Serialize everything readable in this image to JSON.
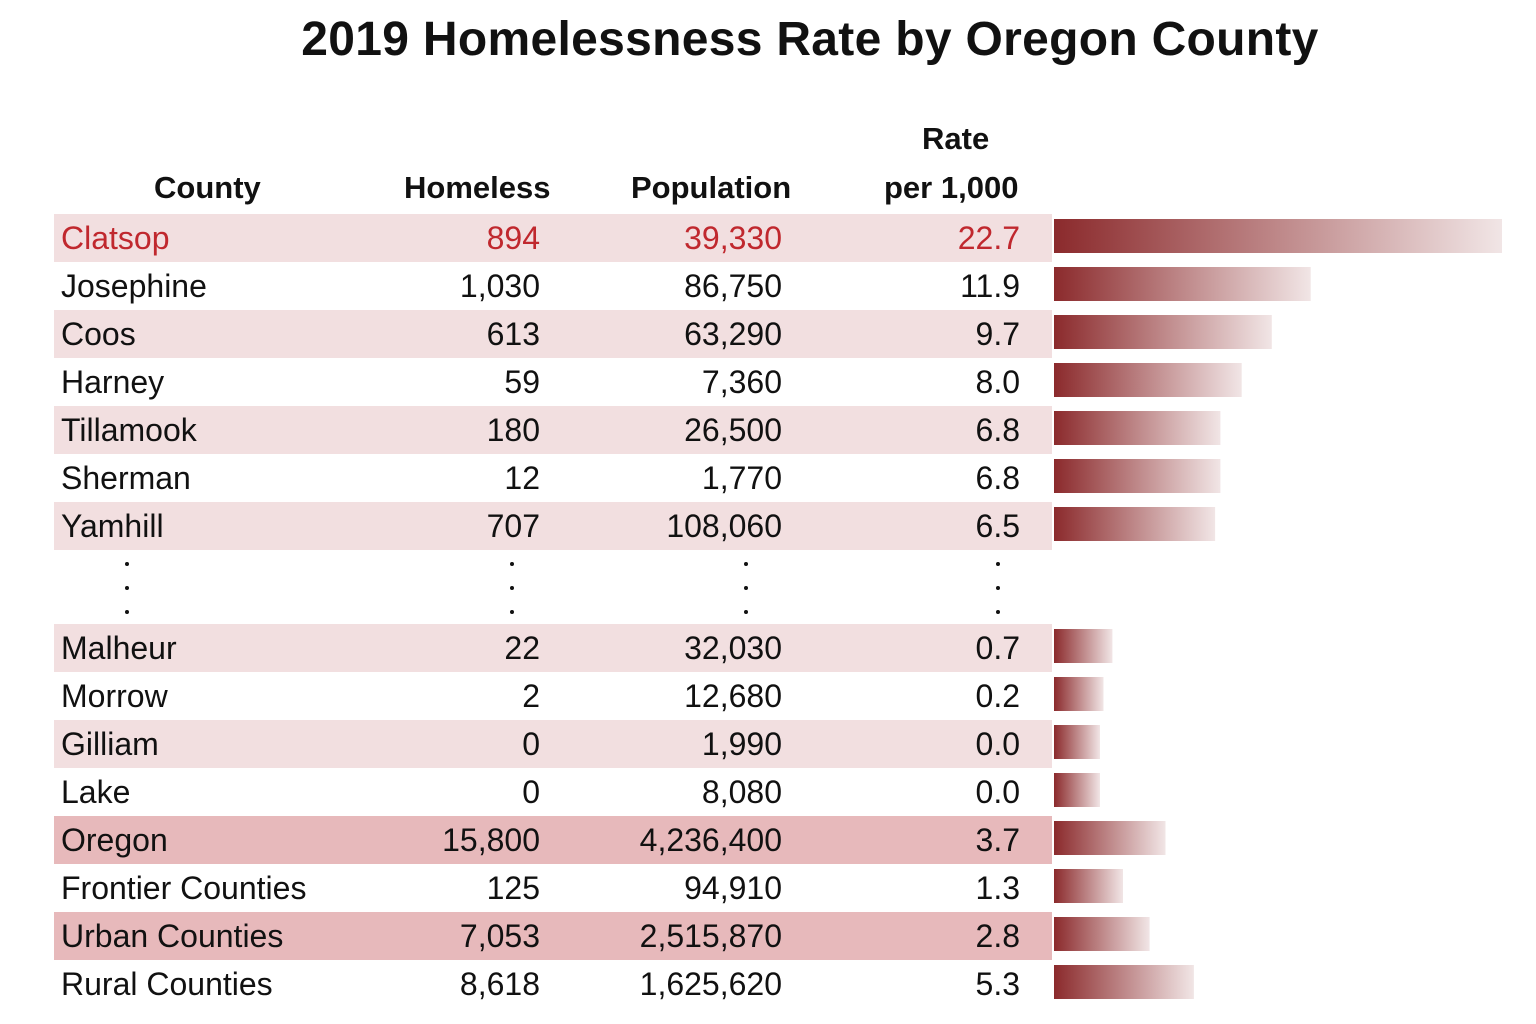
{
  "title": "2019 Homelessness Rate by Oregon County",
  "headers": {
    "county": "County",
    "homeless": "Homeless",
    "population": "Population",
    "rate_line1": "Rate",
    "rate_line2": "per 1,000"
  },
  "ellipsis": ":",
  "rows": [
    {
      "county": "Clatsop",
      "homeless": "894",
      "population": "39,330",
      "rate": "22.7"
    },
    {
      "county": "Josephine",
      "homeless": "1,030",
      "population": "86,750",
      "rate": "11.9"
    },
    {
      "county": "Coos",
      "homeless": "613",
      "population": "63,290",
      "rate": "9.7"
    },
    {
      "county": "Harney",
      "homeless": "59",
      "population": "7,360",
      "rate": "8.0"
    },
    {
      "county": "Tillamook",
      "homeless": "180",
      "population": "26,500",
      "rate": "6.8"
    },
    {
      "county": "Sherman",
      "homeless": "12",
      "population": "1,770",
      "rate": "6.8"
    },
    {
      "county": "Yamhill",
      "homeless": "707",
      "population": "108,060",
      "rate": "6.5"
    },
    {
      "county": "Malheur",
      "homeless": "22",
      "population": "32,030",
      "rate": "0.7"
    },
    {
      "county": "Morrow",
      "homeless": "2",
      "population": "12,680",
      "rate": "0.2"
    },
    {
      "county": "Gilliam",
      "homeless": "0",
      "population": "1,990",
      "rate": "0.0"
    },
    {
      "county": "Lake",
      "homeless": "0",
      "population": "8,080",
      "rate": "0.0"
    },
    {
      "county": "Oregon",
      "homeless": "15,800",
      "population": "4,236,400",
      "rate": "3.7"
    },
    {
      "county": "Frontier Counties",
      "homeless": "125",
      "population": "94,910",
      "rate": "1.3"
    },
    {
      "county": "Urban Counties",
      "homeless": "7,053",
      "population": "2,515,870",
      "rate": "2.8"
    },
    {
      "county": "Rural Counties",
      "homeless": "8,618",
      "population": "1,625,620",
      "rate": "5.3"
    }
  ],
  "chart_data": {
    "type": "bar",
    "orientation": "horizontal",
    "title": "2019 Homelessness Rate by Oregon County",
    "xlabel": "Rate per 1,000",
    "categories": [
      "Clatsop",
      "Josephine",
      "Coos",
      "Harney",
      "Tillamook",
      "Sherman",
      "Yamhill",
      "Malheur",
      "Morrow",
      "Gilliam",
      "Lake",
      "Oregon",
      "Frontier Counties",
      "Urban Counties",
      "Rural Counties"
    ],
    "values": [
      22.7,
      11.9,
      9.7,
      8.0,
      6.8,
      6.8,
      6.5,
      0.7,
      0.2,
      0.0,
      0.0,
      3.7,
      1.3,
      2.8,
      5.3
    ],
    "xlim": [
      0,
      22.7
    ]
  },
  "colors": {
    "bar_dark": "#8b2a2c",
    "highlight_text": "#c0282e",
    "row_shade_light": "#f2dfe0",
    "row_shade_dark": "#e7b9bb"
  }
}
